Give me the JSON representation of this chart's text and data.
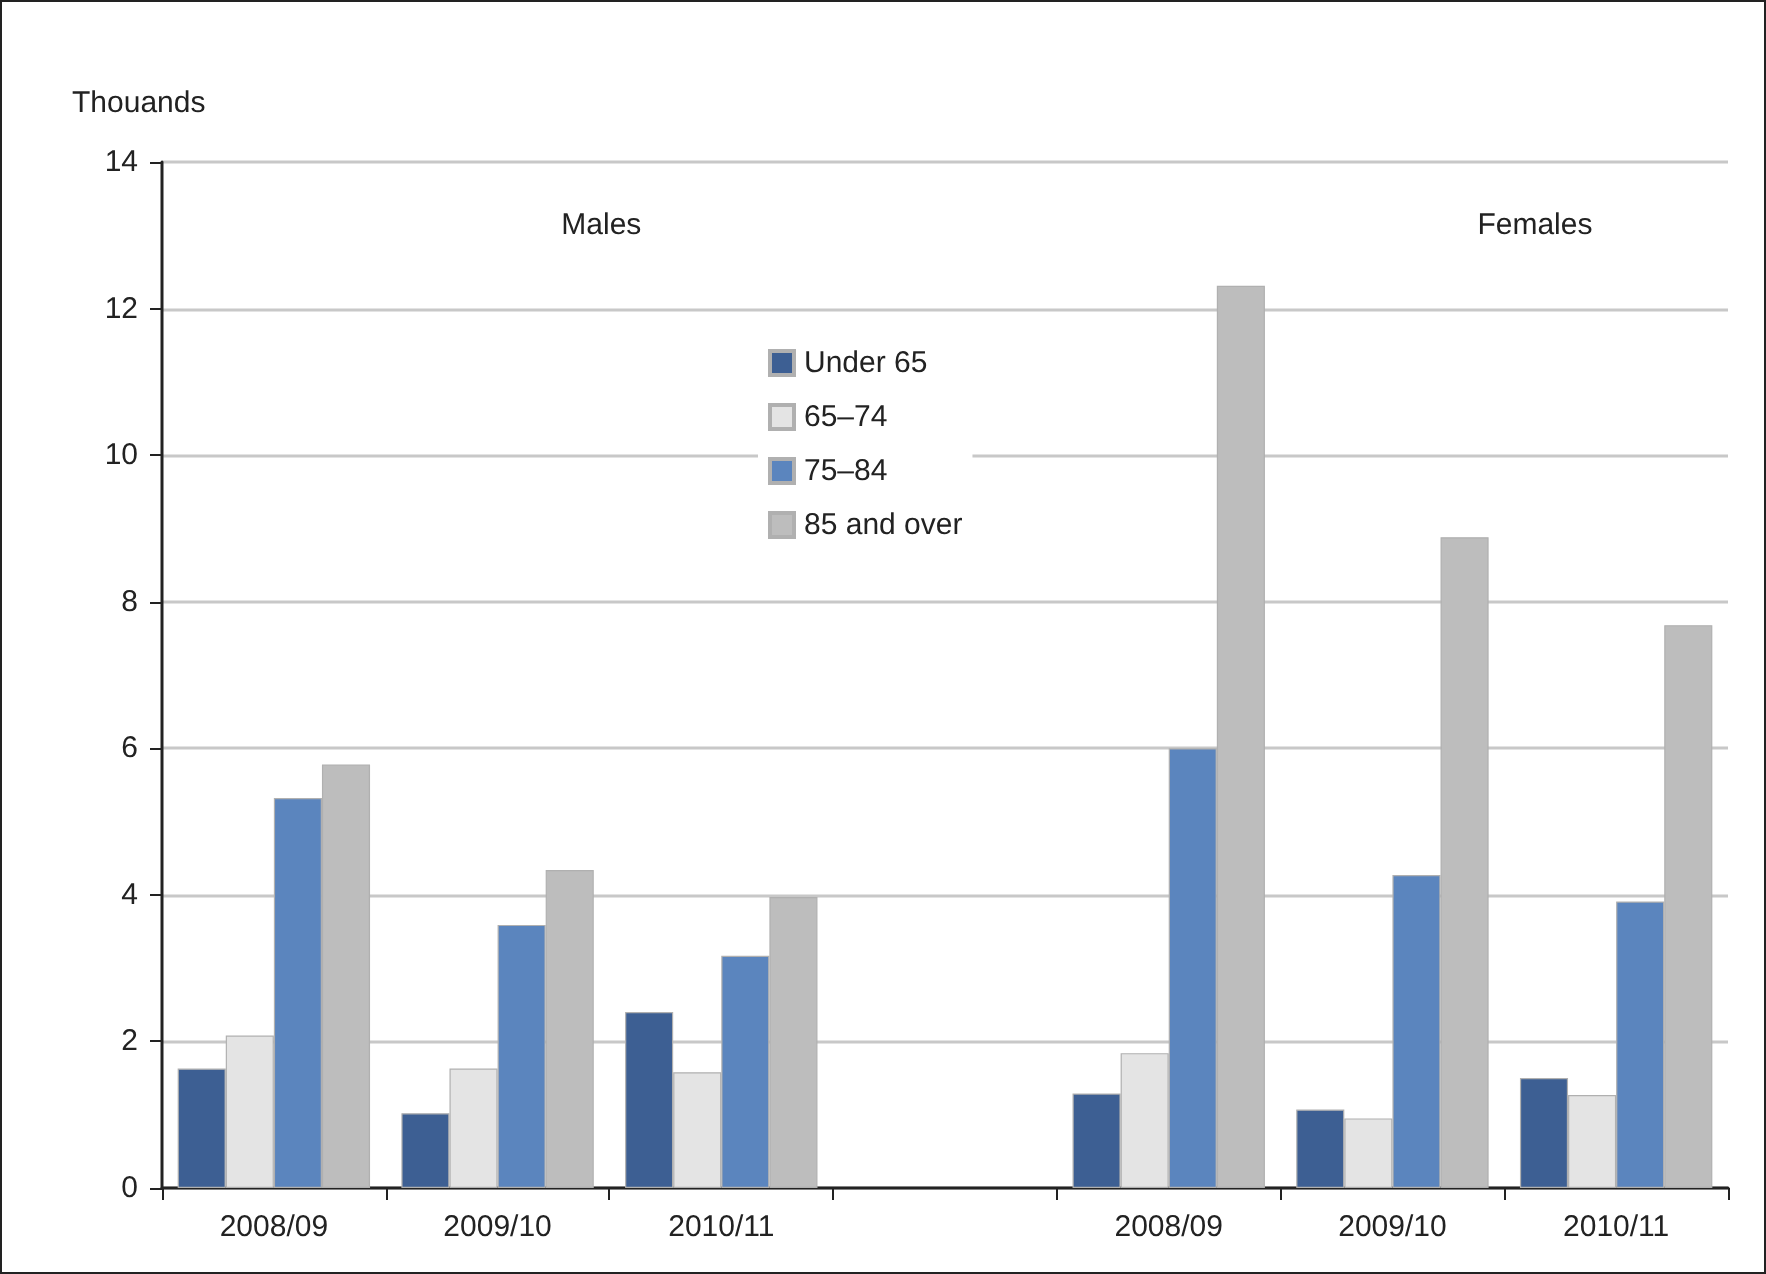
{
  "chart_data": {
    "type": "bar",
    "ylabel": "Thouands",
    "categories": [
      "2008/09",
      "2009/10",
      "2010/11",
      null,
      "2008/09",
      "2009/10",
      "2010/11"
    ],
    "series": [
      {
        "name": "Under 65",
        "color": "#3d5f93",
        "values": [
          1.63,
          1.02,
          2.4,
          null,
          1.29,
          1.07,
          1.5
        ]
      },
      {
        "name": "65–74",
        "color": "#e4e4e4",
        "values": [
          2.08,
          1.63,
          1.58,
          null,
          1.84,
          0.95,
          1.27
        ]
      },
      {
        "name": "75–84",
        "color": "#5b85be",
        "values": [
          5.32,
          3.59,
          3.17,
          null,
          6.0,
          4.27,
          3.91
        ]
      },
      {
        "name": "85 and over",
        "color": "#bdbdbd",
        "values": [
          5.78,
          4.34,
          3.97,
          null,
          12.31,
          8.88,
          7.68
        ]
      }
    ],
    "ylim": [
      0,
      14
    ],
    "yticks": [
      0,
      2,
      4,
      6,
      8,
      10,
      12,
      14
    ],
    "grid": "y",
    "legend": "top",
    "annotations": [
      "Males",
      "Females"
    ]
  }
}
